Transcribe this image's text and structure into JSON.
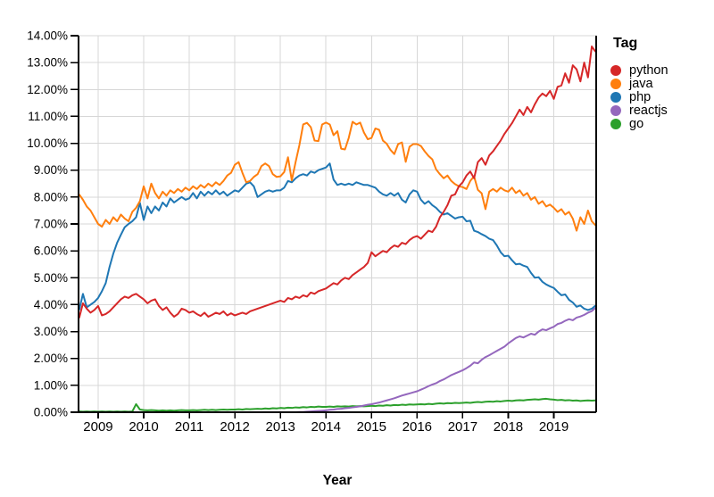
{
  "figure": {
    "x_axis_title": "Year",
    "legend": {
      "title": "Tag"
    },
    "y_tick_labels": [
      "0.00%",
      "1.00%",
      "2.00%",
      "3.00%",
      "4.00%",
      "5.00%",
      "6.00%",
      "7.00%",
      "8.00%",
      "9.00%",
      "10.00%",
      "11.00%",
      "12.00%",
      "13.00%",
      "14.00%"
    ],
    "x_tick_labels": [
      "2009",
      "2010",
      "2011",
      "2012",
      "2013",
      "2014",
      "2015",
      "2016",
      "2017",
      "2018",
      "2019"
    ],
    "colors": {
      "grid": "#d7d7d7",
      "axis": "#000000",
      "text": "#000000",
      "background": "#ffffff"
    }
  },
  "chart_data": {
    "type": "line",
    "title": "",
    "xlabel": "Year",
    "ylabel": "",
    "legend_title": "Tag",
    "legend_position": "right",
    "grid": true,
    "x_interval": "monthly",
    "x_start": "2008-08",
    "x_end": "2019-12",
    "xlim_years": [
      2008.57,
      2019.93
    ],
    "x_axis_ticks": [
      2009,
      2010,
      2011,
      2012,
      2013,
      2014,
      2015,
      2016,
      2017,
      2018,
      2019
    ],
    "ylim": [
      0,
      14
    ],
    "y_tick_step": 1,
    "y_unit": "percent of questions",
    "series": [
      {
        "name": "python",
        "color": "#d62728",
        "values": [
          3.5,
          4.05,
          3.85,
          3.7,
          3.8,
          3.95,
          3.6,
          3.65,
          3.75,
          3.9,
          4.05,
          4.2,
          4.3,
          4.25,
          4.35,
          4.4,
          4.3,
          4.2,
          4.05,
          4.15,
          4.2,
          3.95,
          3.8,
          3.9,
          3.7,
          3.55,
          3.65,
          3.85,
          3.8,
          3.7,
          3.75,
          3.65,
          3.58,
          3.7,
          3.55,
          3.62,
          3.7,
          3.65,
          3.75,
          3.6,
          3.68,
          3.6,
          3.65,
          3.7,
          3.65,
          3.75,
          3.8,
          3.85,
          3.9,
          3.95,
          4.0,
          4.05,
          4.1,
          4.15,
          4.1,
          4.25,
          4.2,
          4.3,
          4.25,
          4.35,
          4.3,
          4.45,
          4.4,
          4.5,
          4.55,
          4.6,
          4.7,
          4.8,
          4.75,
          4.9,
          5.0,
          4.95,
          5.1,
          5.2,
          5.3,
          5.4,
          5.55,
          5.95,
          5.8,
          5.9,
          6.0,
          5.95,
          6.1,
          6.2,
          6.15,
          6.3,
          6.25,
          6.4,
          6.5,
          6.55,
          6.45,
          6.6,
          6.75,
          6.7,
          6.9,
          7.25,
          7.45,
          7.7,
          8.05,
          8.1,
          8.4,
          8.55,
          8.8,
          8.95,
          8.7,
          9.3,
          9.45,
          9.2,
          9.55,
          9.7,
          9.9,
          10.1,
          10.35,
          10.55,
          10.75,
          11.0,
          11.25,
          11.05,
          11.35,
          11.15,
          11.45,
          11.7,
          11.85,
          11.75,
          11.95,
          11.65,
          12.1,
          12.15,
          12.6,
          12.25,
          12.9,
          12.75,
          12.3,
          13.0,
          12.45,
          13.6,
          13.4
        ]
      },
      {
        "name": "java",
        "color": "#ff7f0e",
        "values": [
          8.1,
          7.9,
          7.65,
          7.5,
          7.25,
          7.0,
          6.9,
          7.15,
          7.0,
          7.25,
          7.1,
          7.35,
          7.2,
          7.1,
          7.45,
          7.6,
          7.85,
          8.4,
          7.95,
          8.5,
          8.15,
          7.95,
          8.2,
          8.05,
          8.25,
          8.15,
          8.3,
          8.2,
          8.35,
          8.25,
          8.4,
          8.3,
          8.45,
          8.35,
          8.5,
          8.4,
          8.55,
          8.45,
          8.6,
          8.8,
          8.9,
          9.2,
          9.3,
          8.9,
          8.55,
          8.6,
          8.75,
          8.85,
          9.15,
          9.25,
          9.15,
          8.85,
          8.75,
          8.77,
          8.93,
          9.48,
          8.62,
          9.3,
          9.93,
          10.7,
          10.76,
          10.6,
          10.1,
          10.08,
          10.7,
          10.77,
          10.7,
          10.3,
          10.45,
          9.8,
          9.77,
          10.2,
          10.8,
          10.7,
          10.77,
          10.4,
          10.15,
          10.2,
          10.55,
          10.5,
          10.1,
          9.98,
          9.75,
          9.6,
          9.97,
          10.03,
          9.31,
          9.87,
          9.97,
          9.97,
          9.9,
          9.7,
          9.53,
          9.4,
          9.03,
          8.85,
          8.7,
          8.8,
          8.6,
          8.48,
          8.4,
          8.37,
          8.3,
          8.6,
          8.77,
          8.27,
          8.14,
          7.55,
          8.2,
          8.3,
          8.2,
          8.35,
          8.25,
          8.2,
          8.35,
          8.15,
          8.25,
          8.05,
          8.15,
          7.9,
          8.0,
          7.75,
          7.85,
          7.65,
          7.72,
          7.6,
          7.45,
          7.55,
          7.35,
          7.45,
          7.2,
          6.75,
          7.25,
          7.0,
          7.5,
          7.1,
          6.95
        ]
      },
      {
        "name": "php",
        "color": "#1f77b4",
        "values": [
          3.8,
          4.4,
          3.9,
          4.0,
          4.1,
          4.25,
          4.5,
          4.8,
          5.4,
          5.9,
          6.3,
          6.6,
          6.88,
          7.0,
          7.1,
          7.25,
          7.78,
          7.15,
          7.65,
          7.4,
          7.65,
          7.5,
          7.8,
          7.65,
          7.95,
          7.8,
          7.9,
          8.0,
          7.9,
          7.95,
          8.15,
          7.95,
          8.2,
          8.05,
          8.2,
          8.1,
          8.25,
          8.1,
          8.2,
          8.05,
          8.15,
          8.25,
          8.2,
          8.35,
          8.5,
          8.55,
          8.4,
          8.0,
          8.1,
          8.2,
          8.25,
          8.2,
          8.25,
          8.25,
          8.35,
          8.6,
          8.55,
          8.7,
          8.8,
          8.85,
          8.8,
          8.95,
          8.9,
          9.0,
          9.05,
          9.1,
          9.25,
          8.65,
          8.45,
          8.5,
          8.45,
          8.5,
          8.45,
          8.55,
          8.5,
          8.45,
          8.45,
          8.4,
          8.35,
          8.2,
          8.1,
          8.05,
          8.15,
          8.05,
          8.15,
          7.9,
          7.8,
          8.1,
          8.25,
          8.2,
          7.9,
          7.75,
          7.85,
          7.7,
          7.6,
          7.45,
          7.35,
          7.4,
          7.3,
          7.2,
          7.25,
          7.27,
          7.1,
          7.12,
          6.75,
          6.7,
          6.62,
          6.55,
          6.45,
          6.4,
          6.2,
          5.95,
          5.8,
          5.82,
          5.65,
          5.5,
          5.52,
          5.45,
          5.4,
          5.18,
          5.0,
          5.02,
          4.85,
          4.75,
          4.68,
          4.62,
          4.48,
          4.35,
          4.38,
          4.18,
          4.08,
          3.92,
          3.97,
          3.85,
          3.8,
          3.85,
          3.97
        ]
      },
      {
        "name": "reactjs",
        "color": "#9467bd",
        "values": [
          0.0,
          0.0,
          0.0,
          0.0,
          0.0,
          0.0,
          0.0,
          0.0,
          0.0,
          0.0,
          0.0,
          0.0,
          0.0,
          0.0,
          0.0,
          0.0,
          0.0,
          0.0,
          0.0,
          0.0,
          0.0,
          0.0,
          0.0,
          0.0,
          0.0,
          0.0,
          0.0,
          0.0,
          0.0,
          0.0,
          0.0,
          0.0,
          0.0,
          0.0,
          0.0,
          0.0,
          0.0,
          0.0,
          0.0,
          0.0,
          0.0,
          0.0,
          0.0,
          0.0,
          0.0,
          0.0,
          0.0,
          0.0,
          0.0,
          0.0,
          0.0,
          0.0,
          0.0,
          0.0,
          0.0,
          0.0,
          0.0,
          0.0,
          0.01,
          0.01,
          0.02,
          0.03,
          0.04,
          0.05,
          0.06,
          0.07,
          0.09,
          0.1,
          0.12,
          0.13,
          0.15,
          0.16,
          0.18,
          0.2,
          0.22,
          0.25,
          0.28,
          0.3,
          0.33,
          0.36,
          0.4,
          0.44,
          0.48,
          0.52,
          0.57,
          0.62,
          0.66,
          0.7,
          0.74,
          0.78,
          0.84,
          0.9,
          0.97,
          1.03,
          1.08,
          1.16,
          1.22,
          1.3,
          1.38,
          1.44,
          1.5,
          1.56,
          1.64,
          1.73,
          1.85,
          1.82,
          1.95,
          2.05,
          2.12,
          2.2,
          2.28,
          2.36,
          2.44,
          2.56,
          2.66,
          2.76,
          2.82,
          2.78,
          2.85,
          2.92,
          2.88,
          3.0,
          3.08,
          3.05,
          3.12,
          3.18,
          3.28,
          3.32,
          3.4,
          3.46,
          3.42,
          3.52,
          3.56,
          3.62,
          3.7,
          3.76,
          3.88
        ]
      },
      {
        "name": "go",
        "color": "#2ca02c",
        "values": [
          0.03,
          0.02,
          0.03,
          0.02,
          0.03,
          0.02,
          0.03,
          0.02,
          0.03,
          0.02,
          0.03,
          0.02,
          0.03,
          0.02,
          0.03,
          0.3,
          0.1,
          0.08,
          0.07,
          0.08,
          0.07,
          0.06,
          0.07,
          0.06,
          0.07,
          0.06,
          0.07,
          0.08,
          0.07,
          0.07,
          0.08,
          0.07,
          0.08,
          0.09,
          0.08,
          0.09,
          0.08,
          0.09,
          0.1,
          0.09,
          0.1,
          0.1,
          0.11,
          0.1,
          0.12,
          0.11,
          0.12,
          0.13,
          0.12,
          0.14,
          0.13,
          0.15,
          0.14,
          0.16,
          0.15,
          0.17,
          0.16,
          0.18,
          0.17,
          0.19,
          0.18,
          0.2,
          0.19,
          0.21,
          0.2,
          0.2,
          0.21,
          0.2,
          0.22,
          0.21,
          0.22,
          0.21,
          0.23,
          0.22,
          0.23,
          0.22,
          0.23,
          0.24,
          0.23,
          0.25,
          0.24,
          0.26,
          0.25,
          0.27,
          0.26,
          0.28,
          0.27,
          0.29,
          0.28,
          0.29,
          0.3,
          0.29,
          0.31,
          0.3,
          0.32,
          0.33,
          0.32,
          0.34,
          0.33,
          0.35,
          0.34,
          0.35,
          0.36,
          0.35,
          0.37,
          0.38,
          0.37,
          0.39,
          0.4,
          0.39,
          0.41,
          0.4,
          0.42,
          0.43,
          0.42,
          0.44,
          0.45,
          0.44,
          0.46,
          0.47,
          0.48,
          0.47,
          0.49,
          0.5,
          0.48,
          0.47,
          0.45,
          0.46,
          0.44,
          0.45,
          0.43,
          0.44,
          0.42,
          0.43,
          0.44,
          0.43,
          0.44
        ]
      }
    ]
  }
}
